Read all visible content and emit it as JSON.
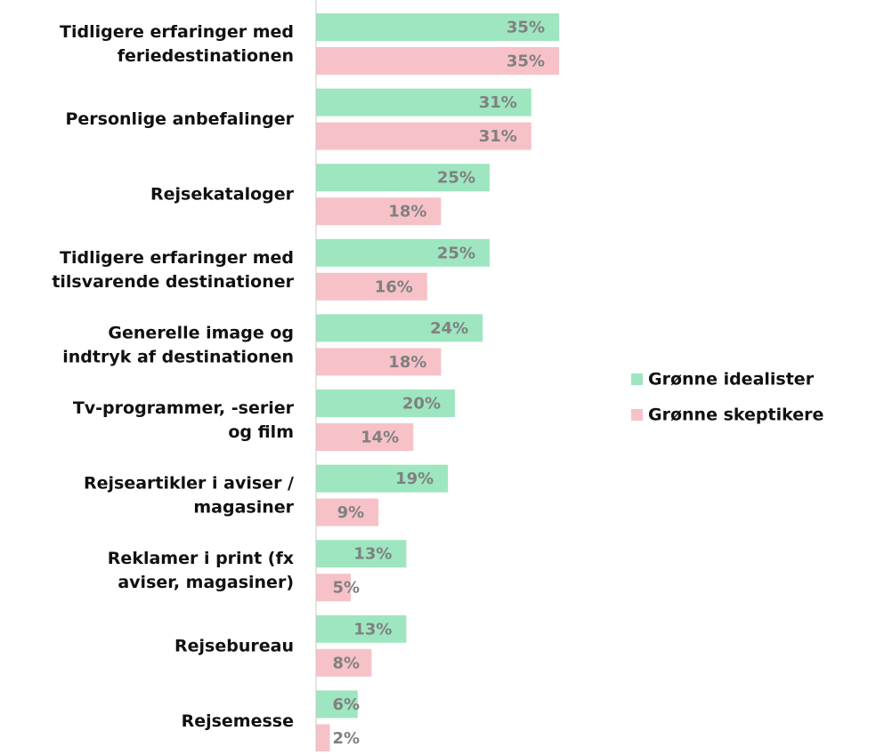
{
  "chart_data": {
    "type": "hbar",
    "categories": [
      "Tidligere erfaringer med\nferiedestinationen",
      "Personlige anbefalinger",
      "Rejsekataloger",
      "Tidligere erfaringer med\ntilsvarende destinationer",
      "Generelle image og\nindtryk af destinationen",
      "Tv-programmer, -serier\nog film",
      "Rejseartikler i aviser /\nmagasiner",
      "Reklamer i print (fx\naviser, magasiner)",
      "Rejsebureau",
      "Rejsemesse"
    ],
    "series": [
      {
        "name": "Grønne idealister",
        "color": "#9de6bf",
        "values": [
          35,
          31,
          25,
          25,
          24,
          20,
          19,
          13,
          13,
          6
        ],
        "value_labels": [
          "35%",
          "31%",
          "25%",
          "25%",
          "24%",
          "20%",
          "19%",
          "13%",
          "13%",
          "6%"
        ]
      },
      {
        "name": "Grønne skeptikere",
        "color": "#f7c1c8",
        "values": [
          35,
          31,
          18,
          16,
          18,
          14,
          9,
          5,
          8,
          2
        ],
        "value_labels": [
          "35%",
          "31%",
          "18%",
          "16%",
          "18%",
          "14%",
          "9%",
          "5%",
          "8%",
          "2%"
        ]
      }
    ],
    "legend": "right"
  }
}
